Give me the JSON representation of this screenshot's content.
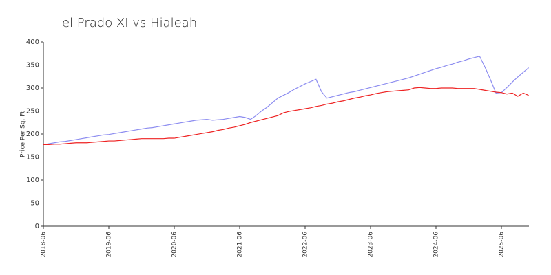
{
  "chart_data": {
    "type": "line",
    "title": "el Prado XI vs Hialeah",
    "y_label": "Price Per Sq. Ft",
    "x": [
      "2018-06",
      "2018-07",
      "2018-08",
      "2018-09",
      "2018-10",
      "2018-11",
      "2018-12",
      "2019-01",
      "2019-02",
      "2019-03",
      "2019-04",
      "2019-05",
      "2019-06",
      "2019-07",
      "2019-08",
      "2019-09",
      "2019-10",
      "2019-11",
      "2019-12",
      "2020-01",
      "2020-02",
      "2020-03",
      "2020-04",
      "2020-05",
      "2020-06",
      "2020-07",
      "2020-08",
      "2020-09",
      "2020-10",
      "2020-11",
      "2020-12",
      "2021-01",
      "2021-02",
      "2021-03",
      "2021-04",
      "2021-05",
      "2021-06",
      "2021-07",
      "2021-08",
      "2021-09",
      "2021-10",
      "2021-11",
      "2021-12",
      "2022-01",
      "2022-02",
      "2022-03",
      "2022-04",
      "2022-05",
      "2022-06",
      "2022-07",
      "2022-08",
      "2022-09",
      "2022-10",
      "2022-11",
      "2022-12",
      "2023-01",
      "2023-02",
      "2023-03",
      "2023-04",
      "2023-05",
      "2023-06",
      "2023-07",
      "2023-08",
      "2023-09",
      "2023-10",
      "2023-11",
      "2023-12",
      "2024-01",
      "2024-02",
      "2024-03",
      "2024-04",
      "2024-05",
      "2024-06",
      "2024-07",
      "2024-08",
      "2024-09",
      "2024-10",
      "2024-11",
      "2024-12",
      "2025-01",
      "2025-02",
      "2025-03",
      "2025-04",
      "2025-05",
      "2025-06",
      "2025-07",
      "2025-08",
      "2025-09",
      "2025-10",
      "2025-11"
    ],
    "series": [
      {
        "color": "#8c8cf0",
        "values": [
          177,
          179,
          181,
          183,
          184,
          186,
          188,
          190,
          192,
          194,
          196,
          198,
          199,
          201,
          203,
          205,
          207,
          209,
          211,
          213,
          214,
          216,
          218,
          220,
          222,
          224,
          226,
          228,
          230,
          231,
          232,
          230,
          231,
          232,
          234,
          236,
          238,
          236,
          232,
          240,
          250,
          258,
          268,
          278,
          284,
          290,
          297,
          303,
          309,
          314,
          319,
          292,
          278,
          281,
          284,
          287,
          290,
          292,
          295,
          298,
          301,
          304,
          307,
          310,
          313,
          316,
          319,
          322,
          326,
          330,
          334,
          338,
          342,
          345,
          349,
          352,
          356,
          359,
          363,
          366,
          369,
          345,
          318,
          289,
          290,
          301,
          313,
          324,
          334,
          344
        ]
      },
      {
        "color": "#ee2222",
        "values": [
          177,
          177,
          178,
          178,
          179,
          180,
          181,
          181,
          181,
          182,
          183,
          184,
          185,
          185,
          186,
          187,
          188,
          189,
          190,
          190,
          190,
          190,
          190,
          191,
          191,
          193,
          195,
          197,
          199,
          201,
          203,
          205,
          208,
          210,
          213,
          215,
          218,
          221,
          225,
          228,
          231,
          234,
          237,
          240,
          246,
          249,
          251,
          253,
          255,
          257,
          260,
          262,
          265,
          267,
          270,
          272,
          275,
          278,
          280,
          283,
          285,
          288,
          290,
          292,
          293,
          294,
          295,
          296,
          300,
          301,
          300,
          299,
          299,
          300,
          300,
          300,
          299,
          299,
          299,
          299,
          297,
          295,
          293,
          291,
          290,
          287,
          289,
          282,
          289,
          284
        ]
      }
    ],
    "ylim": [
      0,
      400
    ],
    "yticks": [
      0,
      50,
      100,
      150,
      200,
      250,
      300,
      350,
      400
    ],
    "xticks": [
      "2018-06",
      "2019-06",
      "2020-06",
      "2021-06",
      "2022-06",
      "2023-06",
      "2024-06",
      "2025-06"
    ]
  }
}
